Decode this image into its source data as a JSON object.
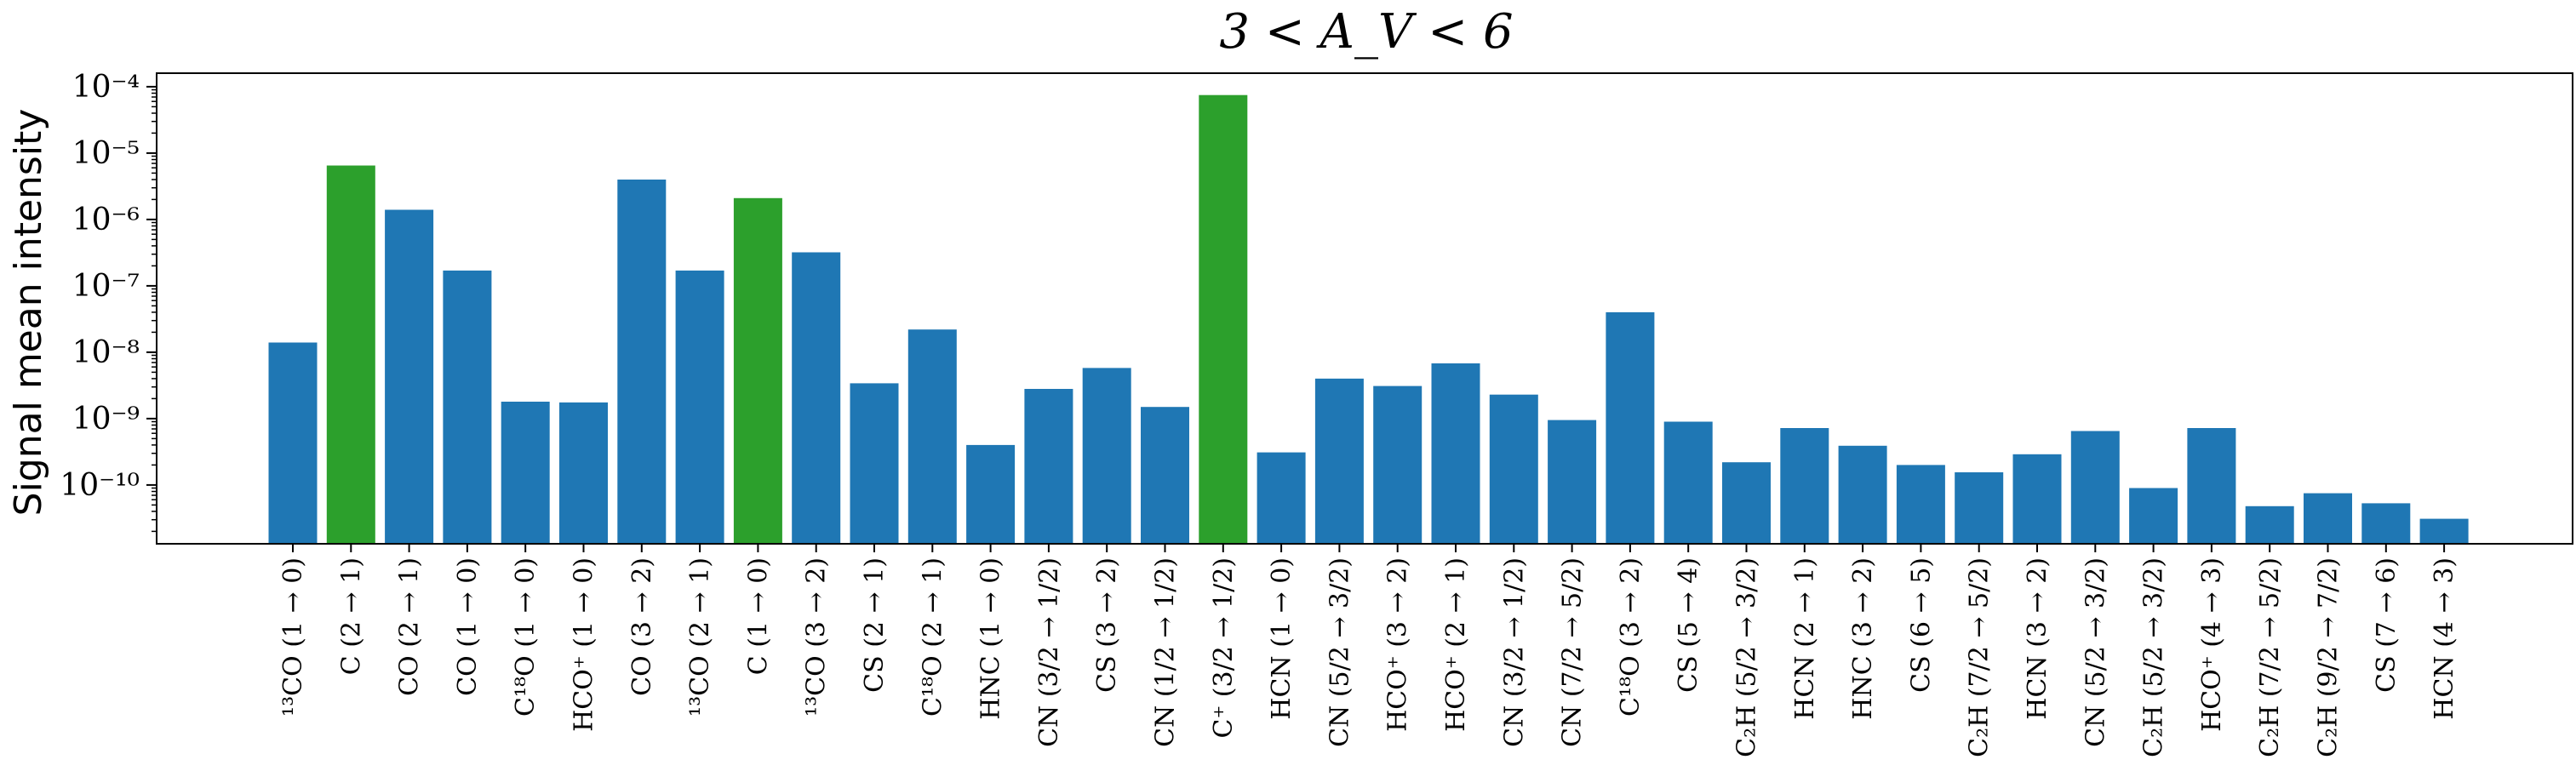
{
  "chart_data": {
    "type": "bar",
    "title": "3 < A_V < 6",
    "ylabel": "Signal mean intensity",
    "xlabel": "",
    "yscale": "log",
    "ylim": [
      1.3e-11,
      0.00016
    ],
    "yticks": [
      1e-10,
      1e-09,
      1e-08,
      1e-07,
      1e-06,
      1e-05,
      0.0001
    ],
    "ytick_labels": [
      "10⁻¹⁰",
      "10⁻⁹",
      "10⁻⁸",
      "10⁻⁷",
      "10⁻⁶",
      "10⁻⁵",
      "10⁻⁴"
    ],
    "colors": {
      "default": "#1f77b4",
      "highlight": "#2ca02c"
    },
    "categories": [
      "¹³CO (1 → 0)",
      "C (2 → 1)",
      "CO (2 → 1)",
      "CO (1 → 0)",
      "C¹⁸O (1 → 0)",
      "HCO⁺ (1 → 0)",
      "CO (3 → 2)",
      "¹³CO (2 → 1)",
      "C (1 → 0)",
      "¹³CO (3 → 2)",
      "CS (2 → 1)",
      "C¹⁸O (2 → 1)",
      "HNC (1 → 0)",
      "CN (3/2 → 1/2)",
      "CS (3 → 2)",
      "CN (1/2 → 1/2)",
      "C⁺ (3/2 → 1/2)",
      "HCN (1 → 0)",
      "CN (5/2 → 3/2)",
      "HCO⁺ (3 → 2)",
      "HCO⁺ (2 → 1)",
      "CN (3/2 → 1/2)",
      "CN (7/2 → 5/2)",
      "C¹⁸O (3 → 2)",
      "CS (5 → 4)",
      "C₂H (5/2 → 3/2)",
      "HCN (2 → 1)",
      "HNC (3 → 2)",
      "CS (6 → 5)",
      "C₂H (7/2 → 5/2)",
      "HCN (3 → 2)",
      "CN (5/2 → 3/2)",
      "C₂H (5/2 → 3/2)",
      "HCO⁺ (4 → 3)",
      "C₂H (7/2 → 5/2)",
      "C₂H (9/2 → 7/2)",
      "CS (7 → 6)",
      "HCN (4 → 3)"
    ],
    "values": [
      1.4e-08,
      6.5e-06,
      1.4e-06,
      1.7e-07,
      1.8e-09,
      1.75e-09,
      4e-06,
      1.7e-07,
      2.1e-06,
      3.2e-07,
      3.4e-09,
      2.2e-08,
      4e-10,
      2.8e-09,
      5.8e-09,
      1.5e-09,
      7.5e-05,
      3.1e-10,
      4e-09,
      3.1e-09,
      6.8e-09,
      2.3e-09,
      9.5e-10,
      4e-08,
      9e-10,
      2.2e-10,
      7.2e-10,
      3.9e-10,
      2e-10,
      1.55e-10,
      2.9e-10,
      6.5e-10,
      9e-11,
      7.2e-10,
      4.8e-11,
      7.5e-11,
      5.3e-11,
      3.1e-11
    ],
    "highlight": [
      false,
      true,
      false,
      false,
      false,
      false,
      false,
      false,
      true,
      false,
      false,
      false,
      false,
      false,
      false,
      false,
      true,
      false,
      false,
      false,
      false,
      false,
      false,
      false,
      false,
      false,
      false,
      false,
      false,
      false,
      false,
      false,
      false,
      false,
      false,
      false,
      false,
      false
    ]
  }
}
